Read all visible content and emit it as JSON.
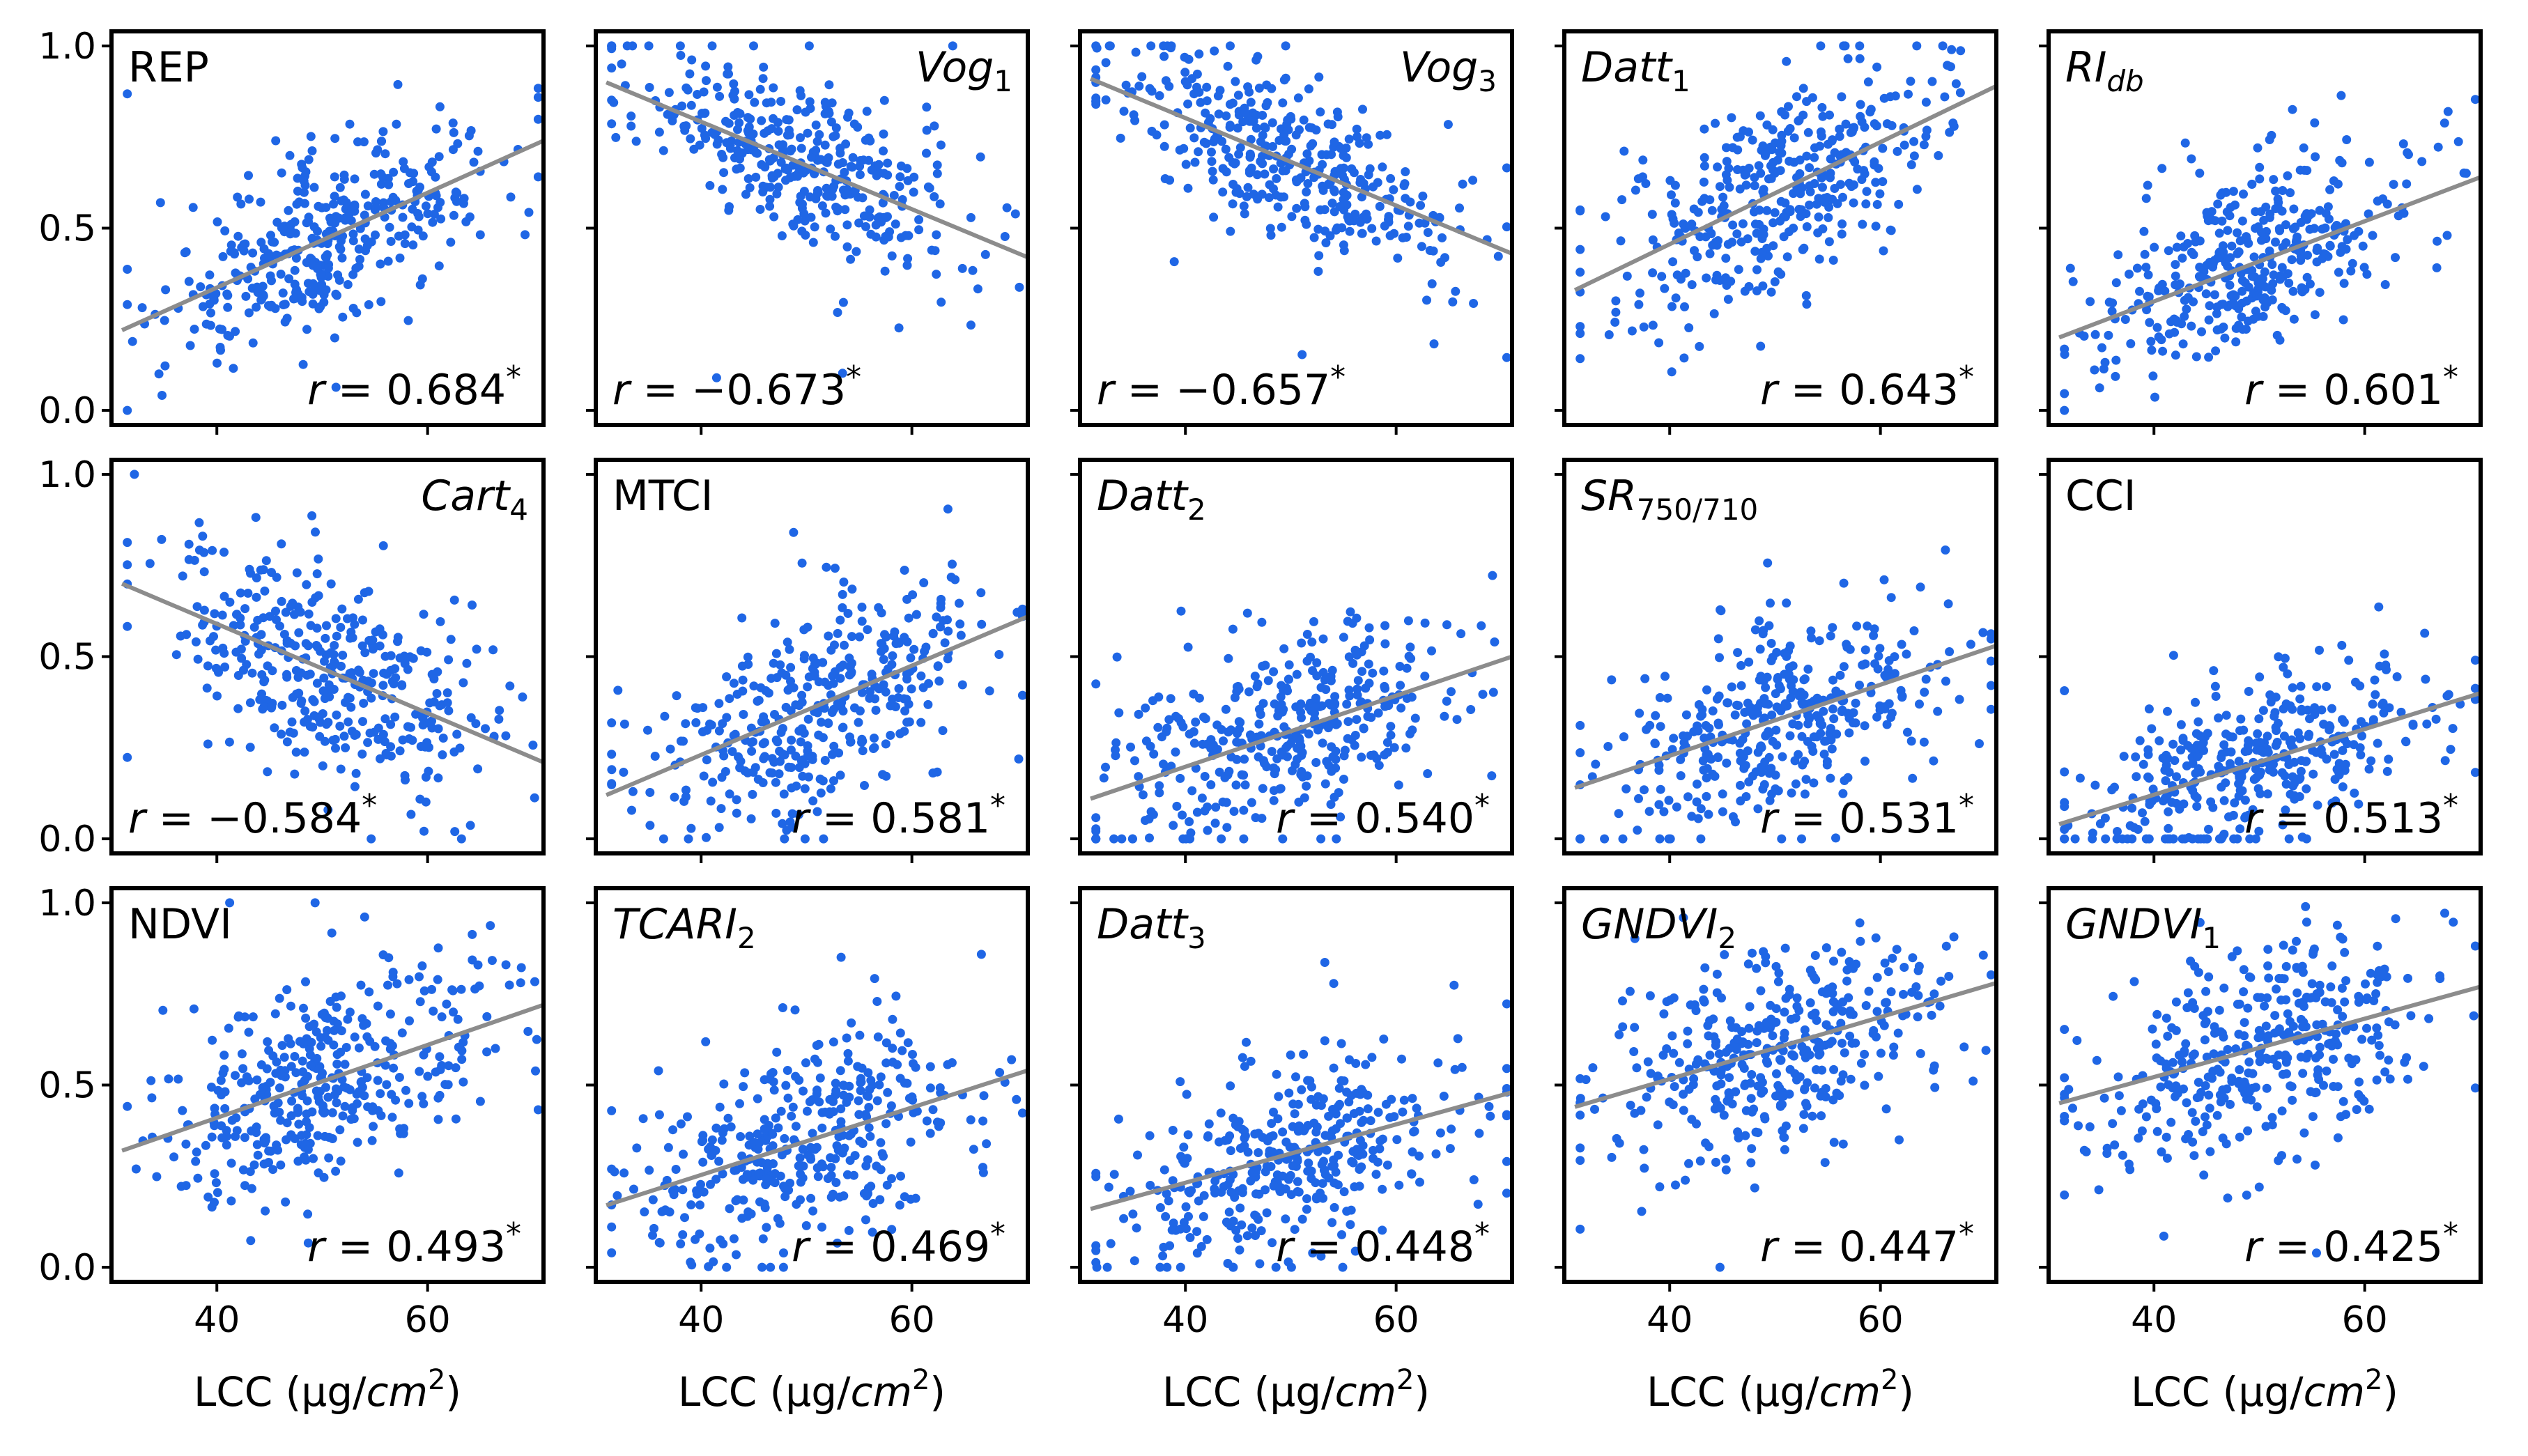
{
  "chart_data": {
    "type": "scatter",
    "layout": "grid 3 rows x 5 columns",
    "xlabel": "LCC (μg/cm²)",
    "xlabel_parts": {
      "text": "LCC (μg/",
      "unit": "cm",
      "sup": "2",
      "close": ")"
    },
    "xlim": [
      30,
      71
    ],
    "ylim": [
      -0.04,
      1.04
    ],
    "xticks": [
      40,
      60
    ],
    "yticks": [
      0.0,
      0.5,
      1.0
    ],
    "ytick_labels": [
      "0.0",
      "0.5",
      "1.0"
    ],
    "point_color": "#1f66e5",
    "fit_color": "#8c8c8c",
    "n_points_per_panel": 380,
    "panels": [
      {
        "name": "REP",
        "italic": false,
        "sub": "",
        "r": "0.684",
        "r_text": "r = 0.684*",
        "label_pos": "top-left",
        "r_pos": "bottom-right",
        "fit": {
          "x": [
            31,
            71
          ],
          "y": [
            0.22,
            0.74
          ]
        }
      },
      {
        "name": "Vog",
        "italic": true,
        "sub": "1",
        "r": "−0.673",
        "r_text": "r = −0.673*",
        "label_pos": "top-right",
        "r_pos": "bottom-left",
        "fit": {
          "x": [
            31,
            71
          ],
          "y": [
            0.9,
            0.42
          ]
        }
      },
      {
        "name": "Vog",
        "italic": true,
        "sub": "3",
        "r": "−0.657",
        "r_text": "r = −0.657*",
        "label_pos": "top-right",
        "r_pos": "bottom-left",
        "fit": {
          "x": [
            31,
            71
          ],
          "y": [
            0.91,
            0.43
          ]
        }
      },
      {
        "name": "Datt",
        "italic": true,
        "sub": "1",
        "r": "0.643",
        "r_text": "r = 0.643*",
        "label_pos": "top-left",
        "r_pos": "bottom-right",
        "fit": {
          "x": [
            31,
            71
          ],
          "y": [
            0.33,
            0.89
          ]
        }
      },
      {
        "name": "RI",
        "italic": true,
        "sub": "db",
        "r": "0.601",
        "r_text": "r = 0.601*",
        "label_pos": "top-left",
        "r_pos": "bottom-right",
        "fit": {
          "x": [
            31,
            71
          ],
          "y": [
            0.2,
            0.64
          ]
        }
      },
      {
        "name": "Cart",
        "italic": true,
        "sub": "4",
        "r": "−0.584",
        "r_text": "r = −0.584*",
        "label_pos": "top-right",
        "r_pos": "bottom-left",
        "fit": {
          "x": [
            31,
            71
          ],
          "y": [
            0.7,
            0.21
          ]
        }
      },
      {
        "name": "MTCI",
        "italic": false,
        "sub": "",
        "r": "0.581",
        "r_text": "r = 0.581*",
        "label_pos": "top-left",
        "r_pos": "bottom-right",
        "fit": {
          "x": [
            31,
            71
          ],
          "y": [
            0.12,
            0.61
          ]
        }
      },
      {
        "name": "Datt",
        "italic": true,
        "sub": "2",
        "r": "0.540",
        "r_text": "r = 0.540*",
        "label_pos": "top-left",
        "r_pos": "bottom-right",
        "fit": {
          "x": [
            31,
            71
          ],
          "y": [
            0.11,
            0.5
          ]
        }
      },
      {
        "name": "SR",
        "italic": true,
        "sub": "750/710",
        "r": "0.531",
        "r_text": "r = 0.531*",
        "label_pos": "top-left",
        "r_pos": "bottom-right",
        "fit": {
          "x": [
            31,
            71
          ],
          "y": [
            0.14,
            0.53
          ]
        }
      },
      {
        "name": "CCI",
        "italic": false,
        "sub": "",
        "r": "0.513",
        "r_text": "r = 0.513*",
        "label_pos": "top-left",
        "r_pos": "bottom-right",
        "fit": {
          "x": [
            31,
            71
          ],
          "y": [
            0.04,
            0.4
          ]
        }
      },
      {
        "name": "NDVI",
        "italic": false,
        "sub": "",
        "r": "0.493",
        "r_text": "r = 0.493*",
        "label_pos": "top-left",
        "r_pos": "bottom-right",
        "fit": {
          "x": [
            31,
            71
          ],
          "y": [
            0.32,
            0.72
          ]
        }
      },
      {
        "name": "TCARI",
        "italic": true,
        "sub": "2",
        "r": "0.469",
        "r_text": "r = 0.469*",
        "label_pos": "top-left",
        "r_pos": "bottom-right",
        "fit": {
          "x": [
            31,
            71
          ],
          "y": [
            0.17,
            0.54
          ]
        }
      },
      {
        "name": "Datt",
        "italic": true,
        "sub": "3",
        "r": "0.448",
        "r_text": "r = 0.448*",
        "label_pos": "top-left",
        "r_pos": "bottom-right",
        "fit": {
          "x": [
            31,
            71
          ],
          "y": [
            0.16,
            0.48
          ]
        }
      },
      {
        "name": "GNDVI",
        "italic": true,
        "sub": "2",
        "r": "0.447",
        "r_text": "r = 0.447*",
        "label_pos": "top-left",
        "r_pos": "bottom-right",
        "fit": {
          "x": [
            31,
            71
          ],
          "y": [
            0.44,
            0.78
          ]
        }
      },
      {
        "name": "GNDVI",
        "italic": true,
        "sub": "1",
        "r": "0.425",
        "r_text": "r = 0.425*",
        "label_pos": "top-left",
        "r_pos": "bottom-right",
        "fit": {
          "x": [
            31,
            71
          ],
          "y": [
            0.45,
            0.77
          ]
        }
      }
    ]
  }
}
